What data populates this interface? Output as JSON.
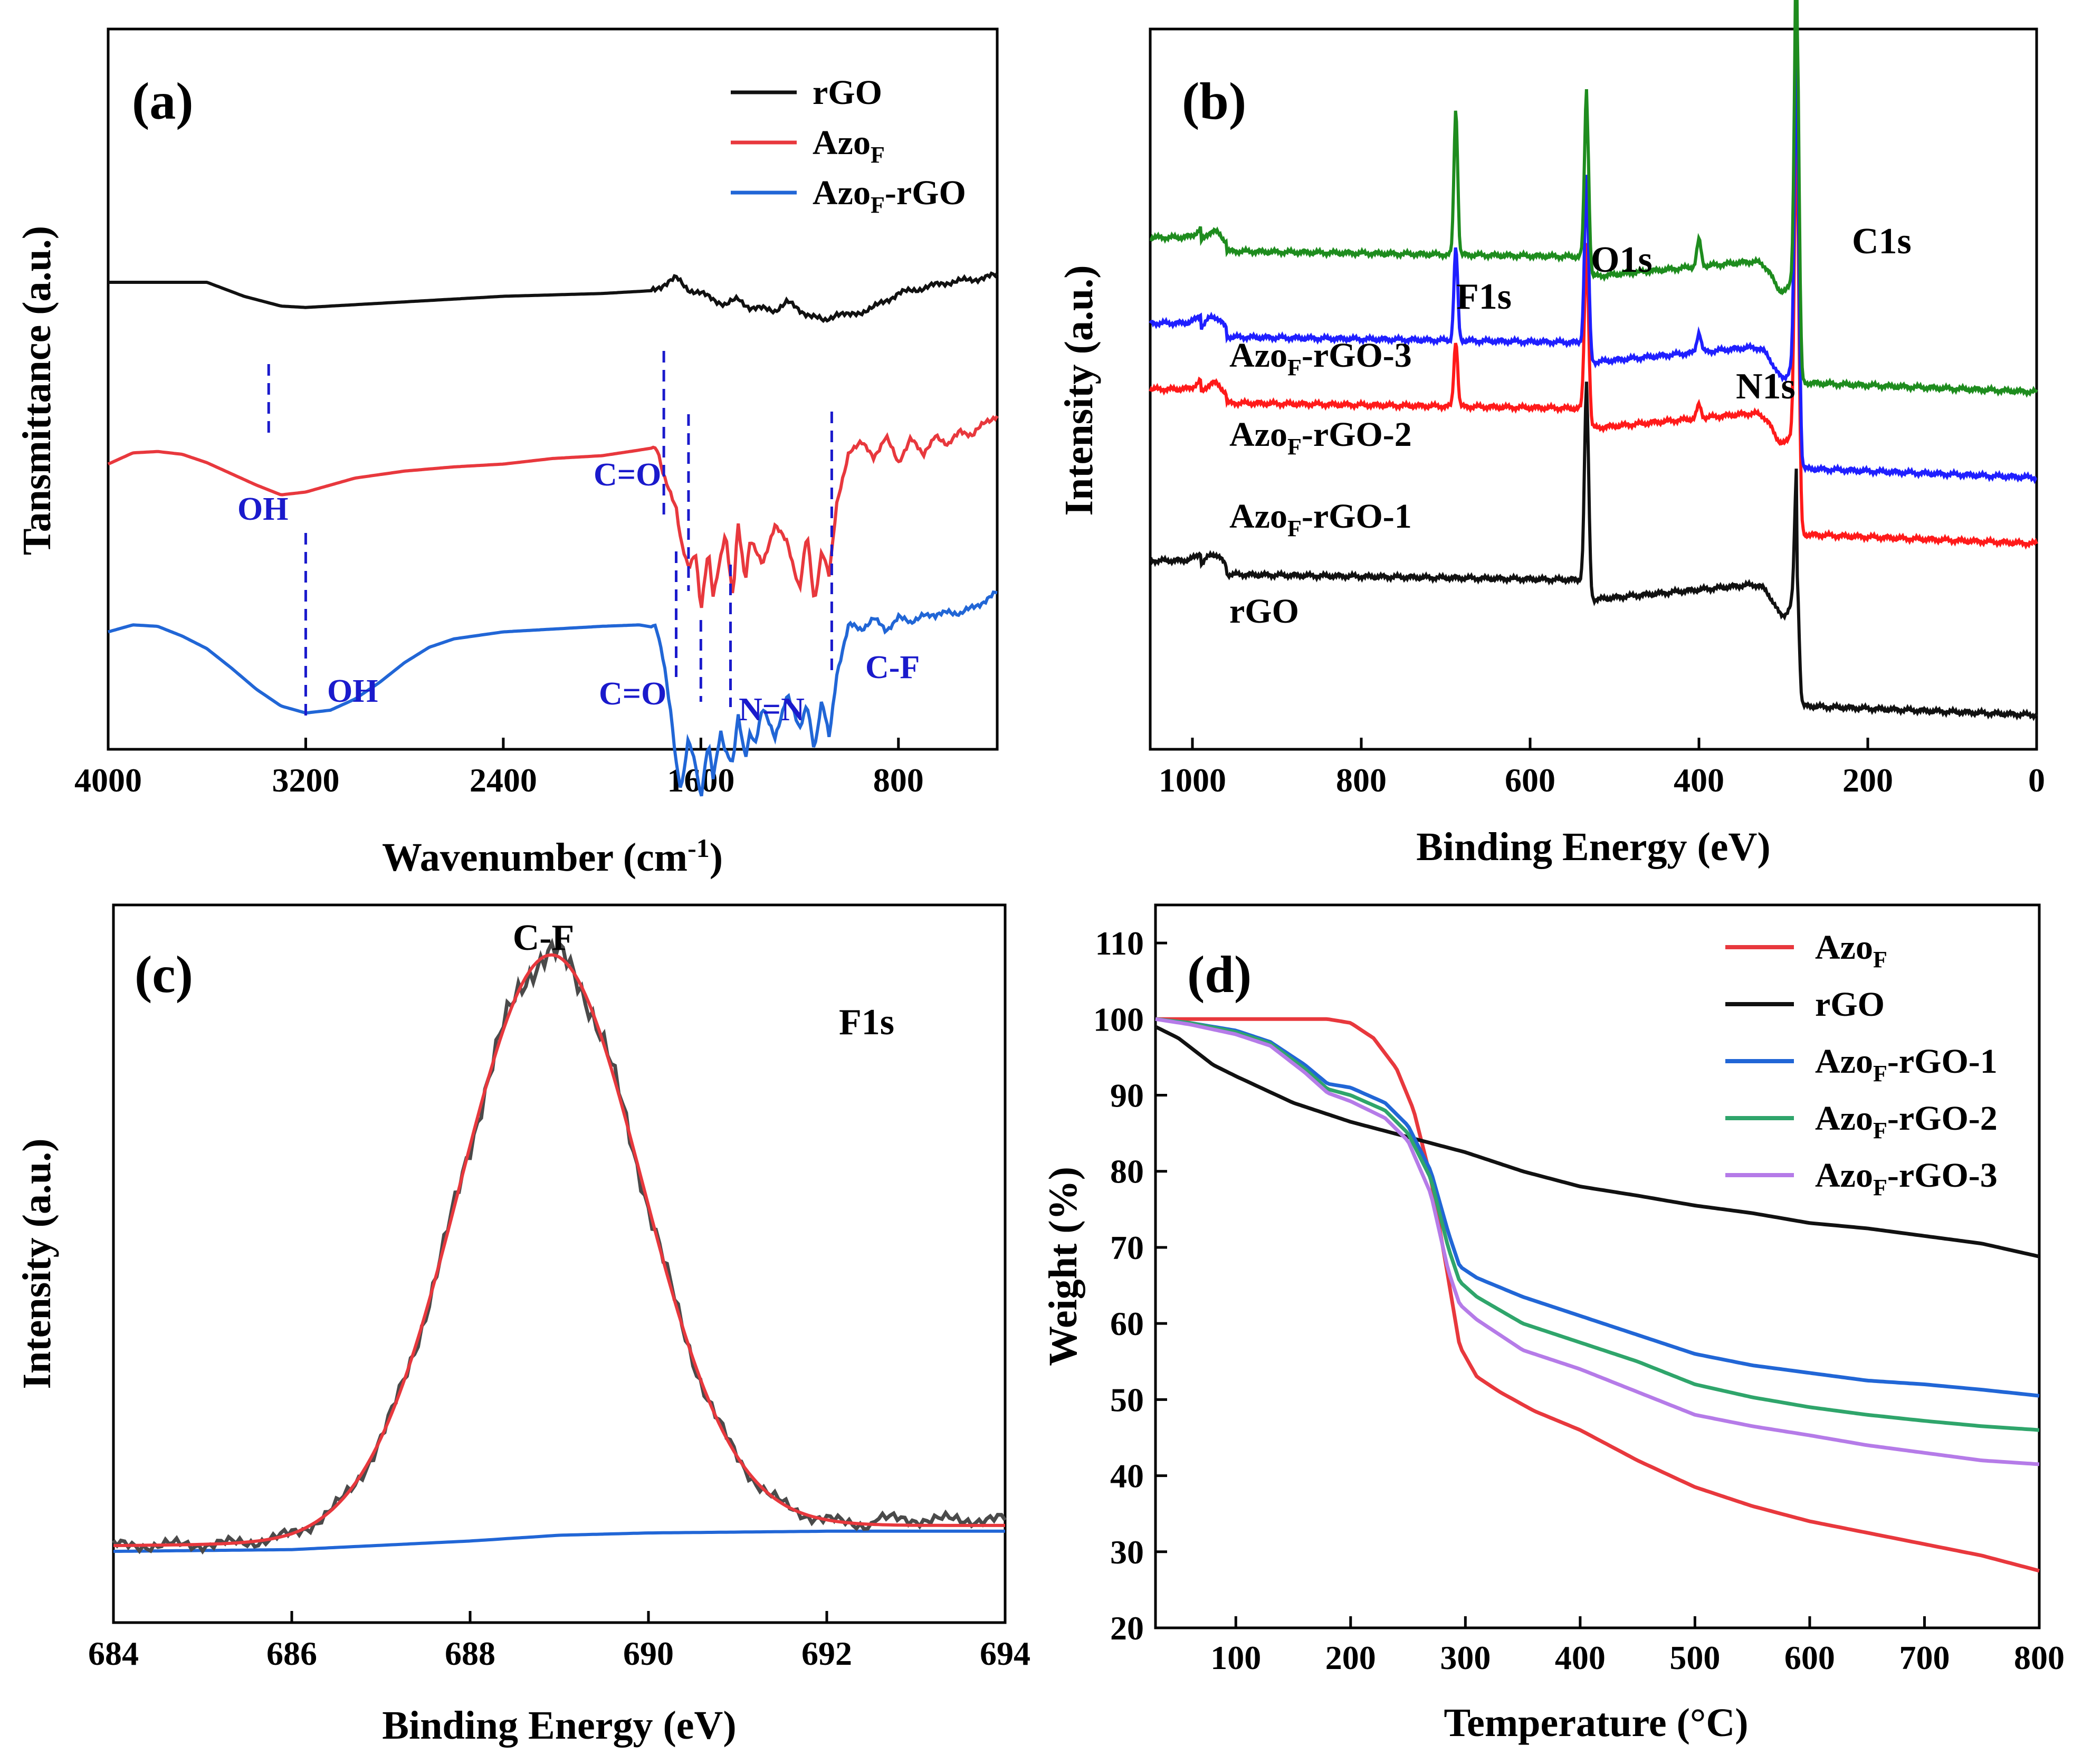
{
  "colors": {
    "black": "#111111",
    "red": "#e8383d",
    "blue": "#2166d6",
    "blue_pure": "#1f1fff",
    "red_pure": "#ff1a1a",
    "green": "#1e8c1e",
    "teal": "#2fa56b",
    "purple": "#b57be8",
    "annot_blue": "#1a1acc"
  },
  "chart_data": [
    {
      "id": "a",
      "panel_label": "(a)",
      "type": "line",
      "title": "",
      "xlabel": "Wavenumber (cm",
      "xlabel_sup": "-1",
      "xlabel_tail": ")",
      "ylabel": "Tansmittance (a.u.)",
      "xlim": [
        4000,
        400
      ],
      "ticks": [
        4000,
        3200,
        2400,
        1600,
        800
      ],
      "tick_labels": [
        "4000",
        "3200",
        "2400",
        "1600",
        "800"
      ],
      "legend": [
        {
          "name": "rGO",
          "base": "rGO",
          "sub": "",
          "tail": "",
          "color": "#111111"
        },
        {
          "name": "AzoF",
          "base": "Azo",
          "sub": "F",
          "tail": "",
          "color": "#e8383d"
        },
        {
          "name": "AzoF-rGO",
          "base": "Azo",
          "sub": "F",
          "tail": "-rGO",
          "color": "#2166d6"
        }
      ],
      "series": [
        {
          "name": "rGO",
          "color": "#111111",
          "offset": 2.0,
          "x": [
            4000,
            3800,
            3600,
            3450,
            3300,
            3200,
            3000,
            2800,
            2600,
            2400,
            2200,
            2000,
            1900,
            1800,
            1700,
            1650,
            1600,
            1550,
            1500,
            1450,
            1400,
            1300,
            1250,
            1200,
            1150,
            1100,
            1050,
            1000,
            900,
            800,
            700,
            600,
            500,
            400
          ],
          "y": [
            0.0,
            0.0,
            0.0,
            -0.1,
            -0.17,
            -0.18,
            -0.16,
            -0.14,
            -0.12,
            -0.1,
            -0.09,
            -0.08,
            -0.07,
            -0.06,
            0.03,
            -0.05,
            -0.08,
            -0.12,
            -0.16,
            -0.12,
            -0.18,
            -0.2,
            -0.14,
            -0.2,
            -0.24,
            -0.28,
            -0.22,
            -0.24,
            -0.18,
            -0.08,
            -0.04,
            0.0,
            0.02,
            0.05
          ]
        },
        {
          "name": "AzoF",
          "color": "#e8383d",
          "offset": 0.7,
          "x": [
            4000,
            3900,
            3800,
            3700,
            3600,
            3500,
            3400,
            3300,
            3200,
            3100,
            3000,
            2800,
            2600,
            2400,
            2200,
            2000,
            1850,
            1780,
            1750,
            1700,
            1680,
            1650,
            1620,
            1600,
            1570,
            1550,
            1500,
            1470,
            1450,
            1420,
            1400,
            1350,
            1300,
            1250,
            1200,
            1170,
            1140,
            1110,
            1080,
            1050,
            1000,
            950,
            900,
            850,
            800,
            750,
            700,
            650,
            600,
            550,
            500,
            450,
            400
          ],
          "y": [
            0.0,
            0.08,
            0.09,
            0.07,
            0.01,
            -0.07,
            -0.15,
            -0.22,
            -0.2,
            -0.15,
            -0.1,
            -0.05,
            -0.02,
            0.0,
            0.04,
            0.06,
            0.1,
            0.12,
            -0.1,
            -0.3,
            -0.55,
            -0.75,
            -0.65,
            -1.05,
            -0.6,
            -0.95,
            -0.5,
            -0.95,
            -0.4,
            -0.85,
            -0.55,
            -0.7,
            -0.45,
            -0.55,
            -0.9,
            -0.5,
            -1.0,
            -0.6,
            -0.8,
            -0.3,
            0.1,
            0.15,
            0.05,
            0.2,
            0.0,
            0.2,
            0.05,
            0.22,
            0.12,
            0.25,
            0.2,
            0.3,
            0.35
          ]
        },
        {
          "name": "AzoF-rGO",
          "color": "#2166d6",
          "offset": -0.5,
          "x": [
            4000,
            3900,
            3800,
            3700,
            3600,
            3500,
            3400,
            3300,
            3200,
            3100,
            3000,
            2900,
            2800,
            2700,
            2600,
            2400,
            2200,
            2000,
            1850,
            1780,
            1750,
            1720,
            1700,
            1680,
            1650,
            1620,
            1600,
            1570,
            1550,
            1520,
            1500,
            1470,
            1450,
            1420,
            1400,
            1380,
            1350,
            1300,
            1250,
            1200,
            1170,
            1140,
            1110,
            1080,
            1050,
            1000,
            950,
            900,
            850,
            800,
            750,
            700,
            650,
            600,
            550,
            500,
            450,
            400
          ],
          "y": [
            0.0,
            0.05,
            0.04,
            -0.03,
            -0.12,
            -0.26,
            -0.41,
            -0.53,
            -0.58,
            -0.56,
            -0.48,
            -0.36,
            -0.22,
            -0.11,
            -0.05,
            0.0,
            0.02,
            0.04,
            0.05,
            0.03,
            -0.2,
            -0.6,
            -0.95,
            -1.15,
            -0.75,
            -0.95,
            -1.2,
            -0.8,
            -1.05,
            -0.7,
            -0.85,
            -0.95,
            -0.6,
            -0.9,
            -0.7,
            -0.8,
            -0.55,
            -0.75,
            -0.45,
            -0.7,
            -0.5,
            -0.85,
            -0.5,
            -0.75,
            -0.3,
            0.05,
            0.02,
            0.1,
            0.0,
            0.12,
            0.05,
            0.14,
            0.1,
            0.16,
            0.12,
            0.18,
            0.22,
            0.28
          ]
        }
      ],
      "annotations": [
        {
          "text": "OH",
          "x": 3350,
          "color": "#1a1acc"
        },
        {
          "text": "C=O",
          "x": 1750,
          "color": "#1a1acc"
        },
        {
          "text": "OH",
          "x": 3200,
          "color": "#1a1acc"
        },
        {
          "text": "C=O",
          "x": 1700,
          "color": "#1a1acc"
        },
        {
          "text": "N=N",
          "x": 1450,
          "color": "#1a1acc"
        },
        {
          "text": "C-F",
          "x": 1070,
          "color": "#1a1acc"
        }
      ]
    },
    {
      "id": "b",
      "panel_label": "(b)",
      "type": "line",
      "xlabel": "Binding Energy (eV)",
      "ylabel": "Intensity (a.u.)",
      "xlim": [
        1050,
        0
      ],
      "ticks": [
        1000,
        800,
        600,
        400,
        200,
        0
      ],
      "tick_labels": [
        "1000",
        "800",
        "600",
        "400",
        "200",
        "0"
      ],
      "series": [
        {
          "name": "rGO",
          "label_base": "rGO",
          "label_sub": "",
          "label_tail": "",
          "color": "#111111",
          "baseline": 0.2,
          "f1": 0.0,
          "n1": 0.0
        },
        {
          "name": "AzoF-rGO-1",
          "label_base": "Azo",
          "label_sub": "F",
          "label_tail": "-rGO-1",
          "color": "#ff1a1a",
          "baseline": 0.46,
          "f1": 0.1,
          "n1": 0.02
        },
        {
          "name": "AzoF-rGO-2",
          "label_base": "Azo",
          "label_sub": "F",
          "label_tail": "-rGO-2",
          "color": "#1f1fff",
          "baseline": 0.56,
          "f1": 0.14,
          "n1": 0.03
        },
        {
          "name": "AzoF-rGO-3",
          "label_base": "Azo",
          "label_sub": "F",
          "label_tail": "-rGO-3",
          "color": "#1e8c1e",
          "baseline": 0.69,
          "f1": 0.22,
          "n1": 0.04
        }
      ],
      "peaks": [
        {
          "text": "F1s",
          "x": 688
        },
        {
          "text": "O1s",
          "x": 533
        },
        {
          "text": "N1s",
          "x": 400
        },
        {
          "text": "C1s",
          "x": 284
        }
      ]
    },
    {
      "id": "c",
      "panel_label": "(c)",
      "type": "line",
      "xlabel": "Binding Energy (eV)",
      "ylabel": "Intensity (a.u.)",
      "xlim": [
        684,
        694
      ],
      "ticks": [
        684,
        686,
        688,
        690,
        692,
        694
      ],
      "tick_labels": [
        "684",
        "686",
        "688",
        "690",
        "692",
        "694"
      ],
      "peak_label": "C-F",
      "region_label": "F1s",
      "fit": {
        "center": 688.9,
        "sigma": 1.02,
        "amplitude": 1.0,
        "color": "#e8383d"
      },
      "raw_color": "#4a4a4a",
      "background": {
        "x": [
          684,
          686,
          688,
          689,
          690,
          692,
          694
        ],
        "y": [
          0.0,
          0.003,
          0.018,
          0.028,
          0.032,
          0.035,
          0.035
        ],
        "color": "#2166d6"
      }
    },
    {
      "id": "d",
      "panel_label": "(d)",
      "type": "line",
      "xlabel": "Temperature (°C)",
      "ylabel": "Weight (%)",
      "xlim": [
        30,
        800
      ],
      "ylim": [
        20,
        115
      ],
      "xticks": [
        100,
        200,
        300,
        400,
        500,
        600,
        700,
        800
      ],
      "yticks": [
        20,
        30,
        40,
        50,
        60,
        70,
        80,
        90,
        100,
        110
      ],
      "legend": [
        {
          "name": "AzoF",
          "base": "Azo",
          "sub": "F",
          "tail": "",
          "color": "#e8383d"
        },
        {
          "name": "rGO",
          "base": "rGO",
          "sub": "",
          "tail": "",
          "color": "#111111"
        },
        {
          "name": "AzoF-rGO-1",
          "base": "Azo",
          "sub": "F",
          "tail": "-rGO-1",
          "color": "#2166d6"
        },
        {
          "name": "AzoF-rGO-2",
          "base": "Azo",
          "sub": "F",
          "tail": "-rGO-2",
          "color": "#2fa56b"
        },
        {
          "name": "AzoF-rGO-3",
          "base": "Azo",
          "sub": "F",
          "tail": "-rGO-3",
          "color": "#b57be8"
        }
      ],
      "series": [
        {
          "name": "AzoF",
          "color": "#e8383d",
          "x": [
            30,
            50,
            100,
            150,
            180,
            200,
            220,
            240,
            255,
            270,
            285,
            295,
            310,
            330,
            360,
            400,
            450,
            500,
            550,
            600,
            650,
            700,
            750,
            800
          ],
          "y": [
            100,
            100,
            100,
            100,
            100,
            99.5,
            97.5,
            93.5,
            88,
            79,
            66,
            57,
            53,
            51,
            48.5,
            46,
            42,
            38.5,
            36,
            34,
            32.5,
            31,
            29.5,
            27.5
          ]
        },
        {
          "name": "rGO",
          "color": "#111111",
          "x": [
            30,
            50,
            80,
            100,
            150,
            200,
            250,
            300,
            350,
            400,
            450,
            500,
            550,
            600,
            650,
            700,
            750,
            800
          ],
          "y": [
            99,
            97.5,
            94,
            92.5,
            89,
            86.5,
            84.5,
            82.5,
            80,
            78,
            76.8,
            75.5,
            74.5,
            73.2,
            72.5,
            71.5,
            70.5,
            68.8
          ]
        },
        {
          "name": "AzoF-rGO-1",
          "color": "#2166d6",
          "x": [
            30,
            60,
            100,
            130,
            160,
            180,
            200,
            230,
            250,
            270,
            285,
            295,
            310,
            350,
            400,
            450,
            500,
            550,
            600,
            650,
            700,
            750,
            800
          ],
          "y": [
            100,
            99.5,
            98.5,
            97,
            94,
            91.5,
            91,
            89,
            86,
            80,
            72,
            67.5,
            66,
            63.5,
            61,
            58.5,
            56,
            54.5,
            53.5,
            52.5,
            52,
            51.3,
            50.5
          ]
        },
        {
          "name": "AzoF-rGO-2",
          "color": "#2fa56b",
          "x": [
            30,
            60,
            100,
            130,
            160,
            180,
            200,
            230,
            250,
            270,
            285,
            295,
            310,
            350,
            400,
            450,
            500,
            550,
            600,
            650,
            700,
            750,
            800
          ],
          "y": [
            100,
            99.5,
            98.3,
            96.8,
            93.5,
            90.8,
            90,
            88,
            85,
            79,
            70,
            65.5,
            63.5,
            60,
            57.5,
            55,
            52,
            50.3,
            49,
            48,
            47.2,
            46.5,
            46
          ]
        },
        {
          "name": "AzoF-rGO-3",
          "color": "#b57be8",
          "x": [
            30,
            60,
            100,
            130,
            160,
            180,
            200,
            230,
            250,
            270,
            285,
            295,
            310,
            350,
            400,
            450,
            500,
            550,
            600,
            650,
            700,
            750,
            800
          ],
          "y": [
            100,
            99.3,
            98,
            96.5,
            93,
            90.3,
            89.2,
            87,
            84,
            77,
            67,
            62.5,
            60.5,
            56.5,
            54,
            51,
            48,
            46.5,
            45.3,
            44,
            43,
            42,
            41.5
          ]
        }
      ]
    }
  ]
}
